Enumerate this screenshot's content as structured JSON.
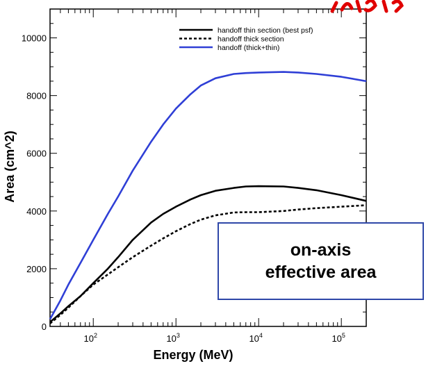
{
  "chart_data": {
    "type": "line",
    "title": "",
    "xlabel": "Energy (MeV)",
    "ylabel": "Area (cm^2)",
    "xscale": "log",
    "xlim": [
      30,
      200000
    ],
    "ylim": [
      0,
      11000
    ],
    "xticks": [
      {
        "value": 100,
        "base": "10",
        "exp": "2"
      },
      {
        "value": 1000,
        "base": "10",
        "exp": "3"
      },
      {
        "value": 10000,
        "base": "10",
        "exp": "4"
      },
      {
        "value": 100000,
        "base": "10",
        "exp": "5"
      }
    ],
    "yticks": [
      {
        "value": 0,
        "label": "0"
      },
      {
        "value": 2000,
        "label": "2000"
      },
      {
        "value": 4000,
        "label": "4000"
      },
      {
        "value": 6000,
        "label": "6000"
      },
      {
        "value": 8000,
        "label": "8000"
      },
      {
        "value": 10000,
        "label": "10000"
      }
    ],
    "grid": false,
    "legend": "top-right",
    "series": [
      {
        "name": "handoff thin section (best psf)",
        "color": "#000000",
        "style": "solid",
        "x": [
          30,
          40,
          50,
          70,
          100,
          150,
          200,
          300,
          500,
          700,
          1000,
          1500,
          2000,
          3000,
          5000,
          7000,
          10000,
          20000,
          30000,
          50000,
          100000,
          200000
        ],
        "y": [
          150,
          450,
          700,
          1050,
          1500,
          2000,
          2400,
          3000,
          3600,
          3900,
          4150,
          4400,
          4550,
          4700,
          4800,
          4850,
          4860,
          4850,
          4800,
          4720,
          4550,
          4350
        ]
      },
      {
        "name": "handoff thick section",
        "color": "#000000",
        "style": "dashed",
        "x": [
          30,
          40,
          50,
          70,
          100,
          150,
          200,
          300,
          500,
          700,
          1000,
          1500,
          2000,
          3000,
          5000,
          7000,
          10000,
          20000,
          30000,
          50000,
          100000,
          200000
        ],
        "y": [
          100,
          400,
          650,
          1050,
          1450,
          1800,
          2050,
          2400,
          2800,
          3050,
          3300,
          3550,
          3700,
          3850,
          3950,
          3960,
          3960,
          4000,
          4050,
          4100,
          4150,
          4200
        ]
      },
      {
        "name": "handoff (thick+thin)",
        "color": "#2f3fd6",
        "style": "solid",
        "x": [
          30,
          40,
          50,
          70,
          100,
          150,
          200,
          300,
          500,
          700,
          1000,
          1500,
          2000,
          3000,
          5000,
          7000,
          10000,
          20000,
          30000,
          50000,
          100000,
          200000
        ],
        "y": [
          250,
          900,
          1450,
          2200,
          3000,
          3900,
          4500,
          5400,
          6400,
          7000,
          7550,
          8050,
          8350,
          8600,
          8750,
          8780,
          8800,
          8820,
          8800,
          8750,
          8650,
          8500
        ]
      }
    ],
    "annotations": [
      {
        "lines": [
          "on-axis",
          "effective area"
        ],
        "position": "lower-right"
      }
    ]
  },
  "colors": {
    "axis": "#000000",
    "annotation_border": "#2e47a8",
    "corner_mark": "#e00000"
  }
}
